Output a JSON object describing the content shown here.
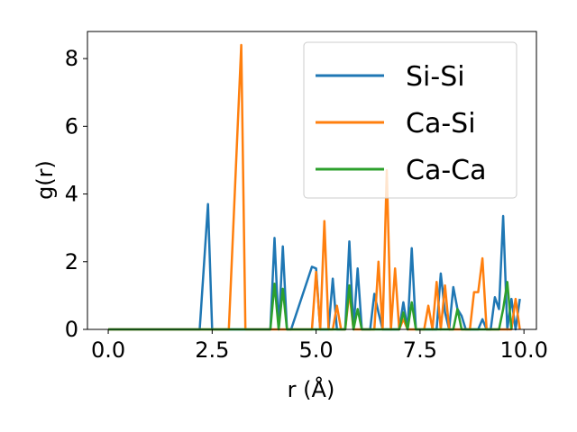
{
  "chart_data": {
    "type": "line",
    "title": "",
    "xlabel": "r (Å)",
    "ylabel": "g(r)",
    "xlim": [
      -0.5,
      10.3
    ],
    "ylim": [
      0,
      8.8
    ],
    "xticks": [
      0.0,
      2.5,
      5.0,
      7.5,
      10.0
    ],
    "xtick_labels": [
      "0.0",
      "2.5",
      "5.0",
      "7.5",
      "10.0"
    ],
    "yticks": [
      0,
      2,
      4,
      6,
      8
    ],
    "ytick_labels": [
      "0",
      "2",
      "4",
      "6",
      "8"
    ],
    "grid": false,
    "legend_position": "top-right",
    "series": [
      {
        "name": "Si-Si",
        "color": "#1f77b4",
        "x": [
          0.0,
          2.2,
          2.4,
          2.5,
          3.9,
          4.0,
          4.1,
          4.2,
          4.3,
          4.4,
          4.9,
          5.0,
          5.1,
          5.2,
          5.3,
          5.4,
          5.5,
          5.6,
          5.7,
          5.8,
          5.9,
          6.0,
          6.1,
          6.2,
          6.3,
          6.4,
          6.5,
          6.6,
          6.7,
          6.8,
          6.9,
          7.0,
          7.1,
          7.2,
          7.3,
          7.4,
          7.5,
          7.6,
          7.7,
          7.8,
          7.9,
          8.0,
          8.1,
          8.2,
          8.3,
          8.4,
          8.5,
          8.6,
          8.7,
          8.8,
          8.9,
          9.0,
          9.1,
          9.2,
          9.3,
          9.4,
          9.5,
          9.6,
          9.7,
          9.8,
          9.9
        ],
        "y": [
          0,
          0,
          3.7,
          0,
          0,
          2.7,
          0,
          2.45,
          0,
          0,
          1.85,
          1.8,
          0,
          0,
          0,
          1.5,
          0,
          0,
          0,
          2.6,
          0,
          1.8,
          0,
          0,
          0,
          1.05,
          0.5,
          0,
          0,
          0,
          0,
          0,
          0.8,
          0,
          2.4,
          0,
          0,
          0,
          0,
          0,
          0,
          1.65,
          0.5,
          0,
          1.25,
          0.6,
          0.4,
          0,
          0,
          0,
          0,
          0.3,
          0,
          0,
          0.95,
          0.6,
          3.35,
          0,
          0.9,
          0,
          0.9
        ]
      },
      {
        "name": "Ca-Si",
        "color": "#ff7f0e",
        "x": [
          0.0,
          2.9,
          3.2,
          3.3,
          4.9,
          5.0,
          5.1,
          5.2,
          5.3,
          5.4,
          5.5,
          5.6,
          5.7,
          5.8,
          5.9,
          6.0,
          6.1,
          6.2,
          6.3,
          6.4,
          6.5,
          6.6,
          6.7,
          6.8,
          6.9,
          7.0,
          7.1,
          7.2,
          7.3,
          7.4,
          7.5,
          7.6,
          7.7,
          7.8,
          7.9,
          8.0,
          8.1,
          8.2,
          8.3,
          8.4,
          8.5,
          8.6,
          8.7,
          8.8,
          8.9,
          9.0,
          9.1,
          9.2,
          9.3,
          9.4,
          9.5,
          9.6,
          9.7,
          9.8,
          9.9
        ],
        "y": [
          0,
          0,
          8.4,
          0,
          0,
          1.7,
          0,
          3.2,
          0,
          0,
          0.7,
          0,
          0,
          1.1,
          0,
          0,
          0,
          0,
          0,
          0,
          2.0,
          0,
          4.7,
          0,
          1.8,
          0,
          0.3,
          0,
          0,
          0,
          0,
          0,
          0.7,
          0,
          1.4,
          0,
          1.3,
          0,
          0,
          0,
          0,
          0,
          0,
          1.1,
          1.1,
          2.1,
          0,
          0,
          0,
          0,
          0,
          0,
          0,
          0.9,
          0
        ]
      },
      {
        "name": "Ca-Ca",
        "color": "#2ca02c",
        "x": [
          0.0,
          3.9,
          4.0,
          4.1,
          4.2,
          4.3,
          5.6,
          5.7,
          5.8,
          5.9,
          6.0,
          6.1,
          6.9,
          7.0,
          7.1,
          7.2,
          7.3,
          7.4,
          7.5,
          8.2,
          8.3,
          8.4,
          8.5,
          9.4,
          9.5,
          9.6,
          9.7
        ],
        "y": [
          0,
          0,
          1.35,
          0,
          1.2,
          0,
          0,
          0,
          1.3,
          0,
          0.6,
          0,
          0,
          0,
          0.5,
          0,
          0.8,
          0,
          0,
          0,
          0,
          0.6,
          0,
          0,
          0.6,
          1.4,
          0
        ]
      }
    ]
  }
}
